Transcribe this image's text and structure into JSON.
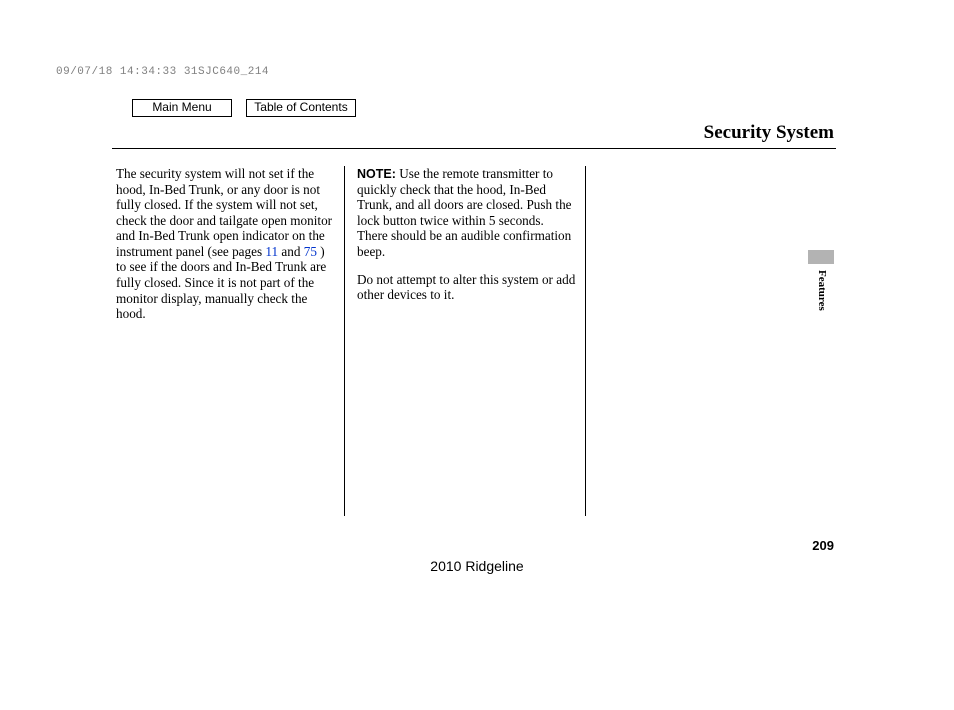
{
  "header_code": "09/07/18 14:34:33 31SJC640_214",
  "nav": {
    "main_menu": "Main Menu",
    "toc": "Table of Contents"
  },
  "title": "Security System",
  "side_tab_label": "Features",
  "page_number": "209",
  "footer_model": "2010 Ridgeline",
  "colors": {
    "text": "#000000",
    "link": "#0033cc",
    "tab_bg": "#b3b3b3",
    "header_code": "#808080",
    "background": "#ffffff",
    "rule": "#000000"
  },
  "column1": {
    "text_before_links": "The security system will not set if the hood, In-Bed Trunk, or any door is not fully closed. If the system will not set, check the door and tailgate open monitor and In-Bed Trunk open indicator on the instrument panel (see pages ",
    "link1": "11",
    "between_links": " and ",
    "link2": "75",
    "text_after_links": " ) to see if the doors and In-Bed Trunk are fully closed. Since it is not part of the monitor display, manually check the hood."
  },
  "column2": {
    "note_label": "NOTE:",
    "note_body": " Use the remote transmitter to quickly check that the hood, In-Bed Trunk, and all doors are closed. Push the lock button twice within 5 seconds. There should be an audible confirmation beep.",
    "para2": "Do not attempt to alter this system or add other devices to it."
  }
}
